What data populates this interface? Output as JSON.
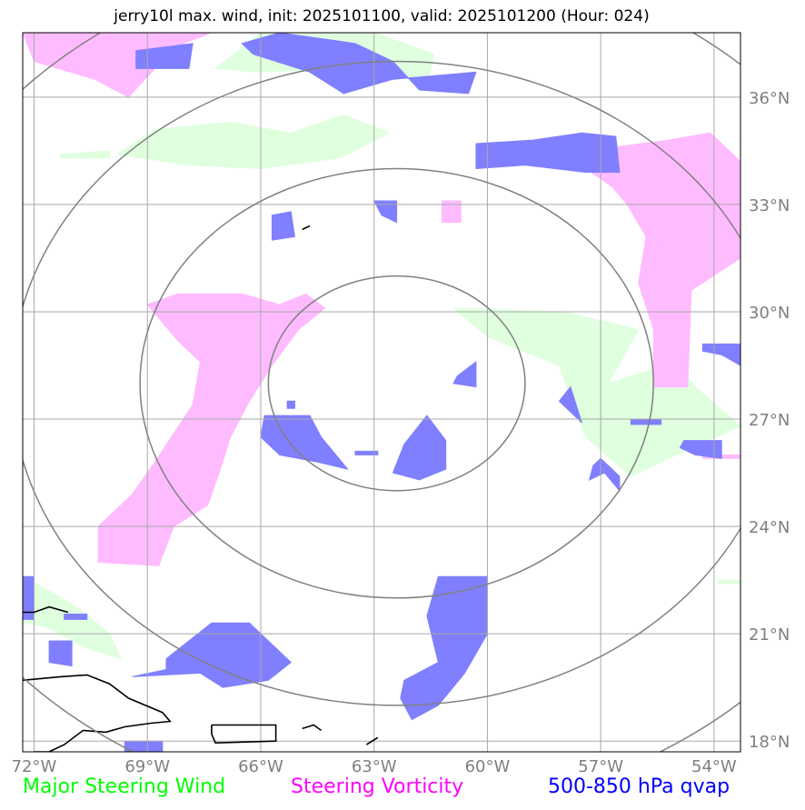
{
  "chart_data": {
    "type": "map-contour",
    "title": "jerry10l max. wind, init: 2025101100, valid: 2025101200 (Hour: 024)",
    "model": "jerry10l",
    "init": "2025101100",
    "valid": "2025101200",
    "forecast_hour": "024",
    "lon_range": [
      -72.3,
      -53.3
    ],
    "lat_range": [
      17.7,
      37.8
    ],
    "x_ticks": [
      {
        "lon": -72,
        "label": "72°W"
      },
      {
        "lon": -69,
        "label": "69°W"
      },
      {
        "lon": -66,
        "label": "66°W"
      },
      {
        "lon": -63,
        "label": "63°W"
      },
      {
        "lon": -60,
        "label": "60°W"
      },
      {
        "lon": -57,
        "label": "57°W"
      },
      {
        "lon": -54,
        "label": "54°W"
      }
    ],
    "y_ticks": [
      {
        "lat": 18,
        "label": "18°N"
      },
      {
        "lat": 21,
        "label": "21°N"
      },
      {
        "lat": 24,
        "label": "24°N"
      },
      {
        "lat": 27,
        "label": "27°N"
      },
      {
        "lat": 30,
        "label": "30°N"
      },
      {
        "lat": 33,
        "label": "33°N"
      },
      {
        "lat": 36,
        "label": "36°N"
      }
    ],
    "storm_center": {
      "lon": -62.4,
      "lat": 28.0
    },
    "range_rings_deg": [
      3,
      6,
      9,
      12
    ],
    "legend": [
      {
        "label": "Major Steering Wind",
        "color": "#00ff00"
      },
      {
        "label": "Steering Vorticity",
        "color": "#ff00ff"
      },
      {
        "label": "500-850 hPa qvap",
        "color": "#0000ff"
      }
    ],
    "fields": {
      "steering_wind": {
        "color": "#dfffdf",
        "regions": [
          [
            [
              -67.2,
              36.8
            ],
            [
              -66,
              37.8
            ],
            [
              -63,
              37.8
            ],
            [
              -61.4,
              37.2
            ],
            [
              -61.6,
              36.4
            ],
            [
              -63.5,
              36.8
            ],
            [
              -66,
              36.7
            ]
          ],
          [
            [
              -69.8,
              34.4
            ],
            [
              -68.8,
              35.1
            ],
            [
              -66.8,
              35.3
            ],
            [
              -65.2,
              35
            ],
            [
              -63.8,
              35.5
            ],
            [
              -62.6,
              35
            ],
            [
              -63.9,
              34.3
            ],
            [
              -66,
              34
            ],
            [
              -67.9,
              34.1
            ]
          ],
          [
            [
              -71.3,
              34.4
            ],
            [
              -70,
              34.5
            ],
            [
              -70,
              34.3
            ],
            [
              -71.3,
              34.3
            ]
          ],
          [
            [
              -60.9,
              30.1
            ],
            [
              -58,
              30
            ],
            [
              -56,
              29.5
            ],
            [
              -56.8,
              28
            ],
            [
              -55,
              28.6
            ],
            [
              -54.5,
              27.9
            ],
            [
              -53.3,
              26.8
            ],
            [
              -55,
              26
            ],
            [
              -56.2,
              25.4
            ],
            [
              -57.4,
              26.5
            ],
            [
              -58.1,
              28.5
            ],
            [
              -60,
              29.3
            ]
          ],
          [
            [
              -72.3,
              22.6
            ],
            [
              -71.6,
              22.2
            ],
            [
              -70.8,
              21.7
            ],
            [
              -70,
              21
            ],
            [
              -69.7,
              20.3
            ],
            [
              -70.6,
              20.6
            ],
            [
              -71.7,
              21.2
            ],
            [
              -72.3,
              21.3
            ]
          ],
          [
            [
              -53.9,
              22.4
            ],
            [
              -53.3,
              22.4
            ],
            [
              -53.3,
              22.5
            ],
            [
              -53.9,
              22.5
            ]
          ]
        ]
      },
      "steering_vorticity": {
        "color": "#ffbbff",
        "regions": [
          [
            [
              -72.3,
              37.8
            ],
            [
              -67.3,
              37.8
            ],
            [
              -68.8,
              37.2
            ],
            [
              -68.8,
              36.8
            ],
            [
              -69.5,
              36
            ],
            [
              -70.4,
              36.5
            ],
            [
              -72,
              37
            ]
          ],
          [
            [
              -69,
              30.2
            ],
            [
              -68.2,
              30.5
            ],
            [
              -66.5,
              30.5
            ],
            [
              -65.5,
              30.2
            ],
            [
              -64.8,
              30.5
            ],
            [
              -64.3,
              30.1
            ],
            [
              -65,
              29.5
            ],
            [
              -65.7,
              28.5
            ],
            [
              -66.3,
              27.5
            ],
            [
              -66.8,
              26.5
            ],
            [
              -67.1,
              25.5
            ],
            [
              -67.4,
              24.6
            ],
            [
              -68.3,
              24
            ],
            [
              -68.7,
              22.9
            ],
            [
              -70.3,
              23
            ],
            [
              -70.3,
              24
            ],
            [
              -69.4,
              24.9
            ],
            [
              -68.8,
              25.8
            ],
            [
              -67.8,
              27.4
            ],
            [
              -67.6,
              28.6
            ],
            [
              -68.2,
              29.2
            ]
          ],
          [
            [
              -57.4,
              34.5
            ],
            [
              -55.2,
              34.8
            ],
            [
              -54.1,
              35
            ],
            [
              -53.3,
              34.2
            ],
            [
              -53.3,
              31.5
            ],
            [
              -54.6,
              30.6
            ],
            [
              -54.7,
              27.9
            ],
            [
              -55.6,
              27.9
            ],
            [
              -55.6,
              29.5
            ],
            [
              -56,
              30.8
            ],
            [
              -55.8,
              32.1
            ],
            [
              -56.3,
              33
            ],
            [
              -56.7,
              33.5
            ],
            [
              -57.4,
              34
            ]
          ],
          [
            [
              -61.2,
              33.1
            ],
            [
              -60.7,
              33.1
            ],
            [
              -60.7,
              32.5
            ],
            [
              -61.2,
              32.5
            ]
          ],
          [
            [
              -55.5,
              31.9
            ],
            [
              -55.2,
              31.4
            ],
            [
              -55.5,
              31
            ],
            [
              -55.8,
              31.4
            ]
          ],
          [
            [
              -54.3,
              25.9
            ],
            [
              -53.3,
              25.9
            ],
            [
              -53.3,
              26
            ],
            [
              -54.3,
              26
            ]
          ]
        ]
      },
      "qvap": {
        "color": "#7f7fff",
        "regions": [
          [
            [
              -66.5,
              37.5
            ],
            [
              -65.5,
              37.8
            ],
            [
              -63.5,
              37.5
            ],
            [
              -62.5,
              37
            ],
            [
              -61.8,
              36.2
            ],
            [
              -60.5,
              36.1
            ],
            [
              -60.3,
              36.7
            ],
            [
              -62.5,
              36.5
            ],
            [
              -63.8,
              36.1
            ],
            [
              -64.7,
              36.7
            ],
            [
              -66.2,
              37.2
            ]
          ],
          [
            [
              -69.3,
              37.3
            ],
            [
              -67.8,
              37.5
            ],
            [
              -67.9,
              36.8
            ],
            [
              -69.3,
              36.8
            ]
          ],
          [
            [
              -60.3,
              34.7
            ],
            [
              -58.8,
              34.8
            ],
            [
              -57.5,
              35
            ],
            [
              -56.6,
              34.9
            ],
            [
              -56.5,
              33.9
            ],
            [
              -57.4,
              33.9
            ],
            [
              -59,
              34.1
            ],
            [
              -60.3,
              34
            ]
          ],
          [
            [
              -65.7,
              32.7
            ],
            [
              -65.2,
              32.8
            ],
            [
              -65.1,
              32.1
            ],
            [
              -65.7,
              32
            ]
          ],
          [
            [
              -63,
              33.1
            ],
            [
              -62.4,
              33.1
            ],
            [
              -62.4,
              32.5
            ],
            [
              -62.8,
              32.7
            ]
          ],
          [
            [
              -60.8,
              28.2
            ],
            [
              -60.3,
              28.6
            ],
            [
              -60.3,
              27.9
            ],
            [
              -60.9,
              28
            ]
          ],
          [
            [
              -65.9,
              27.1
            ],
            [
              -64.7,
              27.1
            ],
            [
              -64.4,
              26.5
            ],
            [
              -63.7,
              25.6
            ],
            [
              -64.5,
              25.8
            ],
            [
              -65.5,
              26
            ],
            [
              -66,
              26.5
            ]
          ],
          [
            [
              -61.6,
              27.1
            ],
            [
              -61.1,
              26.4
            ],
            [
              -61.1,
              25.6
            ],
            [
              -61.8,
              25.3
            ],
            [
              -62.5,
              25.5
            ],
            [
              -62.2,
              26.3
            ]
          ],
          [
            [
              -63.5,
              26.1
            ],
            [
              -62.9,
              26.1
            ],
            [
              -62.9,
              26
            ],
            [
              -63.5,
              26
            ]
          ],
          [
            [
              -57,
              25.9
            ],
            [
              -56.5,
              25.4
            ],
            [
              -56.5,
              25
            ],
            [
              -56.9,
              25.5
            ],
            [
              -57.3,
              25.3
            ],
            [
              -57.2,
              25.7
            ]
          ],
          [
            [
              -58.1,
              27.5
            ],
            [
              -57.5,
              26.9
            ],
            [
              -57.8,
              27.9
            ]
          ],
          [
            [
              -54.8,
              26.4
            ],
            [
              -53.8,
              26.4
            ],
            [
              -53.8,
              25.9
            ],
            [
              -54.5,
              26
            ],
            [
              -54.9,
              26.2
            ]
          ],
          [
            [
              -56.2,
              27.0
            ],
            [
              -55.4,
              27.0
            ],
            [
              -55.4,
              26.85
            ],
            [
              -56.2,
              26.85
            ]
          ],
          [
            [
              -54.3,
              29.1
            ],
            [
              -53.3,
              29.1
            ],
            [
              -53.3,
              28.5
            ],
            [
              -53.8,
              28.8
            ],
            [
              -54.3,
              28.9
            ]
          ],
          [
            [
              -61.3,
              22.6
            ],
            [
              -60,
              22.6
            ],
            [
              -60,
              21
            ],
            [
              -60.6,
              19.9
            ],
            [
              -61.3,
              19
            ],
            [
              -62,
              18.6
            ],
            [
              -62.3,
              19.2
            ],
            [
              -62.2,
              19.7
            ],
            [
              -61.3,
              20.2
            ],
            [
              -61.6,
              21.5
            ]
          ],
          [
            [
              -68.5,
              20.3
            ],
            [
              -67.3,
              21.3
            ],
            [
              -66.3,
              21.3
            ],
            [
              -65.8,
              20.8
            ],
            [
              -65.2,
              20.2
            ],
            [
              -65.8,
              19.7
            ],
            [
              -67,
              19.5
            ],
            [
              -67.6,
              19.9
            ],
            [
              -69.4,
              19.8
            ],
            [
              -68.5,
              20.0
            ]
          ],
          [
            [
              -71.6,
              20.8
            ],
            [
              -71,
              20.8
            ],
            [
              -71,
              20.1
            ],
            [
              -71.6,
              20.2
            ]
          ],
          [
            [
              -72.3,
              22.6
            ],
            [
              -72,
              22.6
            ],
            [
              -72,
              21.4
            ],
            [
              -72.3,
              21.4
            ]
          ],
          [
            [
              -71.2,
              21.55
            ],
            [
              -70.6,
              21.55
            ],
            [
              -70.6,
              21.4
            ],
            [
              -71.2,
              21.4
            ]
          ],
          [
            [
              -69.6,
              18.0
            ],
            [
              -68.6,
              18.0
            ],
            [
              -68.6,
              17.7
            ],
            [
              -69.6,
              17.7
            ]
          ],
          [
            [
              -65.3,
              27.5
            ],
            [
              -65.1,
              27.5
            ],
            [
              -65.1,
              27.3
            ],
            [
              -65.3,
              27.3
            ]
          ]
        ]
      }
    },
    "coastlines": [
      [
        [
          -72.3,
          19.7
        ],
        [
          -71.3,
          19.8
        ],
        [
          -70.6,
          19.85
        ],
        [
          -70,
          19.6
        ],
        [
          -69.5,
          19.2
        ],
        [
          -68.6,
          18.8
        ],
        [
          -68.4,
          18.55
        ],
        [
          -68.9,
          18.5
        ],
        [
          -69.6,
          18.4
        ],
        [
          -70.1,
          18.25
        ],
        [
          -70.7,
          18.3
        ],
        [
          -71.2,
          17.9
        ],
        [
          -71.6,
          17.7
        ],
        [
          -72,
          17.7
        ]
      ],
      [
        [
          -67.3,
          18.45
        ],
        [
          -65.6,
          18.45
        ],
        [
          -65.6,
          18.0
        ],
        [
          -67.2,
          17.95
        ],
        [
          -67.3,
          18.2
        ],
        [
          -67.3,
          18.45
        ]
      ],
      [
        [
          -64.9,
          18.35
        ],
        [
          -64.6,
          18.45
        ],
        [
          -64.4,
          18.3
        ]
      ],
      [
        [
          -71.1,
          21.6
        ],
        [
          -71.6,
          21.75
        ],
        [
          -72,
          21.6
        ],
        [
          -72.3,
          21.6
        ]
      ],
      [
        [
          -64.9,
          32.3
        ],
        [
          -64.7,
          32.4
        ]
      ],
      [
        [
          -63.2,
          17.9
        ],
        [
          -62.9,
          18.1
        ]
      ]
    ]
  }
}
